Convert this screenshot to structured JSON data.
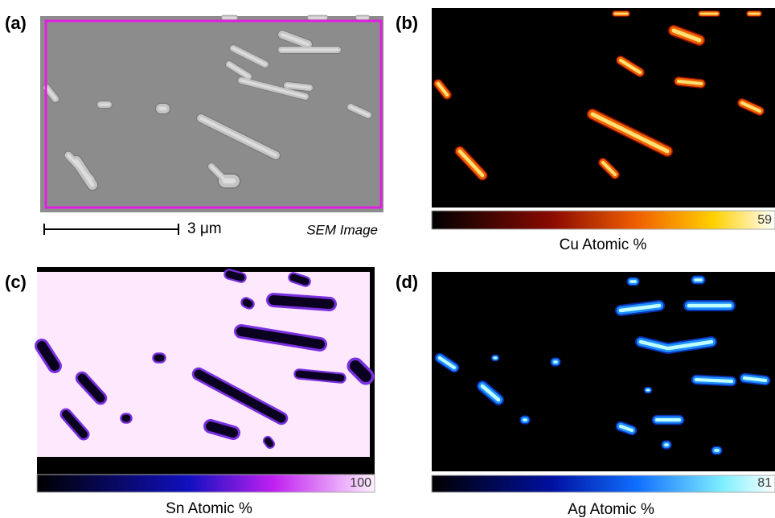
{
  "panels": [
    {
      "label": "(a)",
      "scale_bar": "3 μm",
      "caption": "SEM Image"
    },
    {
      "label": "(b)",
      "colorbar_max": 59,
      "caption": "Cu Atomic %"
    },
    {
      "label": "(c)",
      "colorbar_max": 100,
      "caption": "Sn Atomic %"
    },
    {
      "label": "(d)",
      "colorbar_max": 81,
      "caption": "Ag Atomic %"
    }
  ]
}
